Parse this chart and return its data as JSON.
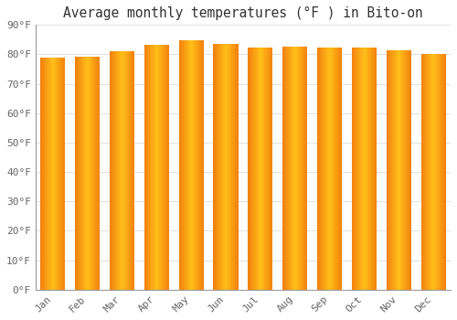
{
  "title": "Average monthly temperatures (°F ) in Bito-on",
  "months": [
    "Jan",
    "Feb",
    "Mar",
    "Apr",
    "May",
    "Jun",
    "Jul",
    "Aug",
    "Sep",
    "Oct",
    "Nov",
    "Dec"
  ],
  "values": [
    79.0,
    79.2,
    81.2,
    83.3,
    84.9,
    83.5,
    82.3,
    82.7,
    82.4,
    82.2,
    81.3,
    80.2
  ],
  "bar_color_center": "#FFB300",
  "bar_color_edge": "#F07000",
  "background_color": "#FFFFFF",
  "grid_color": "#E0E0E0",
  "ylim": [
    0,
    90
  ],
  "yticks": [
    0,
    10,
    20,
    30,
    40,
    50,
    60,
    70,
    80,
    90
  ],
  "ytick_labels": [
    "0°F",
    "10°F",
    "20°F",
    "30°F",
    "40°F",
    "50°F",
    "60°F",
    "70°F",
    "80°F",
    "90°F"
  ],
  "title_fontsize": 10.5,
  "tick_fontsize": 8,
  "bar_width": 0.72,
  "n_grad": 60
}
